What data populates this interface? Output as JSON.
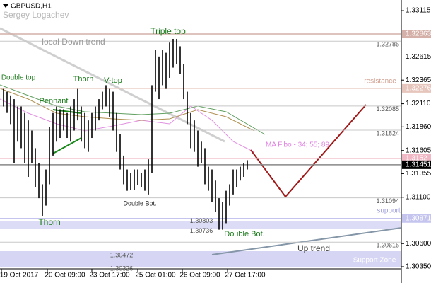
{
  "chart_data": {
    "type": "ohlc",
    "title": "GBPUSD,H1",
    "subtitle": "Sergey Logachev",
    "xlim": [
      0,
      568
    ],
    "ylim": [
      1.30174,
      1.3323
    ],
    "yticks": [
      1.33115,
      1.32615,
      1.32365,
      {
        "value": 1.3211,
        "label": "1.32110"
      },
      {
        "value": 1.3186,
        "label": "1.31860"
      },
      1.31605,
      1.31355,
      {
        "value": 1.311,
        "label": "1.31100"
      },
      {
        "value": 1.306,
        "label": "1.30600"
      },
      {
        "value": 1.3035,
        "label": "1.30350"
      }
    ],
    "xticks": [
      {
        "value": 27,
        "label": "19 Oct 2017"
      },
      {
        "value": 92,
        "label": "20 Oct 09:00"
      },
      {
        "value": 155,
        "label": "23 Oct 17:00"
      },
      {
        "value": 220,
        "label": "25 Oct 01:00"
      },
      {
        "value": 283,
        "label": "26 Oct 09:00"
      },
      {
        "value": 347,
        "label": "27 Oct 17:00"
      }
    ],
    "color": "#000000",
    "x": [
      5,
      10,
      15,
      20,
      25,
      30,
      35,
      40,
      45,
      50,
      55,
      60,
      65,
      70,
      75,
      80,
      85,
      90,
      95,
      100,
      105,
      110,
      115,
      120,
      125,
      130,
      135,
      140,
      145,
      150,
      155,
      160,
      165,
      170,
      175,
      180,
      185,
      190,
      195,
      200,
      205,
      210,
      215,
      220,
      225,
      230,
      235,
      240,
      245,
      250,
      255,
      260,
      265,
      270,
      275,
      280,
      285,
      290,
      295,
      300,
      305,
      310,
      315,
      320,
      325,
      330,
      335,
      340,
      345,
      350
    ],
    "high": [
      1.3227,
      1.3224,
      1.322,
      1.3216,
      1.3208,
      1.3208,
      1.3201,
      1.3193,
      1.3182,
      1.3163,
      1.3147,
      1.3124,
      1.314,
      1.3186,
      1.3201,
      1.3208,
      1.3205,
      1.3205,
      1.3201,
      1.3208,
      1.3216,
      1.3227,
      1.3208,
      1.3201,
      1.3193,
      1.3201,
      1.3208,
      1.3216,
      1.3224,
      1.3231,
      1.3227,
      1.3224,
      1.3201,
      1.3178,
      1.3155,
      1.314,
      1.3136,
      1.314,
      1.314,
      1.3136,
      1.314,
      1.3151,
      1.3231,
      1.3269,
      1.3262,
      1.3269,
      1.3266,
      1.3277,
      1.3281,
      1.3281,
      1.3273,
      1.3254,
      1.3224,
      1.3201,
      1.3193,
      1.3182,
      1.317,
      1.3163,
      1.3143,
      1.314,
      1.3128,
      1.3109,
      1.3105,
      1.3117,
      1.3124,
      1.314,
      1.314,
      1.3143,
      1.3147,
      1.315
    ],
    "low": [
      1.3208,
      1.3201,
      1.3189,
      1.3147,
      1.317,
      1.3163,
      1.3147,
      1.3132,
      1.3147,
      1.3121,
      1.3109,
      1.309,
      1.3101,
      1.3124,
      1.3155,
      1.317,
      1.3174,
      1.3182,
      1.3174,
      1.317,
      1.3182,
      1.3193,
      1.317,
      1.3163,
      1.3159,
      1.3174,
      1.3182,
      1.3193,
      1.3205,
      1.3208,
      1.3197,
      1.3182,
      1.3159,
      1.314,
      1.3124,
      1.3117,
      1.3118,
      1.3118,
      1.3123,
      1.3121,
      1.3117,
      1.3113,
      1.3136,
      1.3224,
      1.3216,
      1.3231,
      1.3227,
      1.3239,
      1.325,
      1.3254,
      1.3243,
      1.3216,
      1.3189,
      1.3163,
      1.3159,
      1.3143,
      1.3147,
      1.3124,
      1.3117,
      1.3105,
      1.3094,
      1.3075,
      1.3075,
      1.3082,
      1.3101,
      1.3113,
      1.3121,
      1.3128,
      1.3132,
      1.314
    ],
    "levels": [
      1.32785,
      1.32085,
      1.31824,
      1.31094,
      1.30615
    ],
    "marked_levels": [
      {
        "value": 1.32863,
        "color": "#d4b0a8"
      },
      {
        "value": 1.32276,
        "color": "#e6c6bc"
      },
      {
        "value": 1.3152,
        "color": "#f0b8c4"
      },
      {
        "value": 1.31451,
        "color": "#000000"
      },
      {
        "value": 1.30871,
        "color": "#c4c4ee"
      }
    ],
    "price_notes": [
      1.30803,
      1.30736,
      1.30472,
      1.30326
    ],
    "annotations": [
      "local Down trend",
      "Double top",
      "Thorn",
      "V-top",
      "Pennant",
      "Triple top",
      "Double Bot.",
      "Thorn",
      "Double Bot.",
      "Up trend",
      "Support Zone",
      "resistance",
      "support",
      "MA Fibo - 34; 55; 89"
    ]
  }
}
